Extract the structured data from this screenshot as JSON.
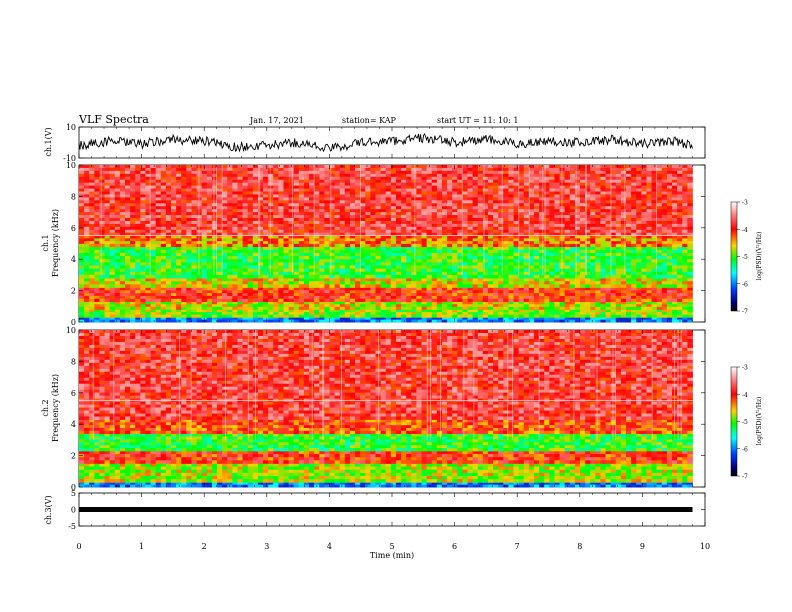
{
  "header": {
    "title": "VLF Spectra",
    "date": "Jan. 17, 2021",
    "station": "station= KAP",
    "start": "start  UT =  11: 10: 1"
  },
  "chart_data": [
    {
      "type": "line",
      "panel": "ch1-waveform",
      "ylabel": "ch.1(V)",
      "ylim": [
        -10,
        10
      ],
      "yticks": [
        "10",
        "-10"
      ],
      "x": [
        0,
        0.5,
        1,
        1.5,
        2,
        2.5,
        3,
        3.5,
        4,
        4.5,
        5,
        5.5,
        6,
        6.5,
        7,
        7.5,
        8,
        8.5,
        9,
        9.5,
        9.8
      ],
      "values": [
        -2,
        1,
        -1,
        2,
        1,
        -3,
        -2,
        0,
        -4,
        0,
        1,
        3,
        0,
        2,
        -1,
        1,
        0,
        2,
        -1,
        1,
        -2
      ],
      "color": "#000000"
    },
    {
      "type": "heatmap",
      "panel": "ch1-spectrogram",
      "ylabel_top": "ch.1",
      "ylabel": "Frequency (kHz)",
      "ylim": [
        0,
        10
      ],
      "yticks": [
        "0",
        "2",
        "4",
        "6",
        "8",
        "10"
      ],
      "colorbar": {
        "label": "log(PSD)(V²/Hz)",
        "ticks": [
          "-3",
          "-4",
          "-5",
          "-6",
          "-7"
        ],
        "range": [
          -7,
          -3
        ]
      },
      "bands": [
        {
          "f": [
            0,
            0.3
          ],
          "level": -6.0
        },
        {
          "f": [
            0.3,
            0.8
          ],
          "level": -4.8
        },
        {
          "f": [
            0.8,
            1.3
          ],
          "level": -4.6
        },
        {
          "f": [
            1.3,
            2.2
          ],
          "level": -4.0
        },
        {
          "f": [
            2.2,
            2.8
          ],
          "level": -4.6
        },
        {
          "f": [
            2.8,
            4.8
          ],
          "level": -5.0
        },
        {
          "f": [
            4.8,
            5.5
          ],
          "level": -4.3
        },
        {
          "f": [
            5.5,
            10
          ],
          "level": -3.8
        }
      ]
    },
    {
      "type": "heatmap",
      "panel": "ch2-spectrogram",
      "ylabel_top": "ch.2",
      "ylabel": "Frequency (kHz)",
      "ylim": [
        0,
        10
      ],
      "yticks": [
        "0",
        "2",
        "4",
        "6",
        "8",
        "10"
      ],
      "colorbar": {
        "label": "log(PSD)(V²/Hz)",
        "ticks": [
          "-3",
          "-4",
          "-5",
          "-6",
          "-7"
        ],
        "range": [
          -7,
          -3
        ]
      },
      "bands": [
        {
          "f": [
            0,
            0.3
          ],
          "level": -6.0
        },
        {
          "f": [
            0.3,
            1.5
          ],
          "level": -4.7
        },
        {
          "f": [
            1.5,
            2.3
          ],
          "level": -4.0
        },
        {
          "f": [
            2.3,
            3.4
          ],
          "level": -5.0
        },
        {
          "f": [
            3.4,
            4.3
          ],
          "level": -4.1
        },
        {
          "f": [
            4.3,
            10
          ],
          "level": -3.8
        }
      ]
    },
    {
      "type": "line",
      "panel": "ch3-waveform",
      "ylabel": "ch.3(V)",
      "ylim": [
        -5,
        5
      ],
      "yticks": [
        "5",
        "0",
        "-5"
      ],
      "x": [
        0,
        9.8
      ],
      "values": [
        0,
        0
      ],
      "color": "#000000"
    }
  ],
  "xaxis": {
    "label": "Time (min)",
    "ticks": [
      "0",
      "1",
      "2",
      "3",
      "4",
      "5",
      "6",
      "7",
      "8",
      "9",
      "10"
    ],
    "range": [
      0,
      10
    ]
  }
}
